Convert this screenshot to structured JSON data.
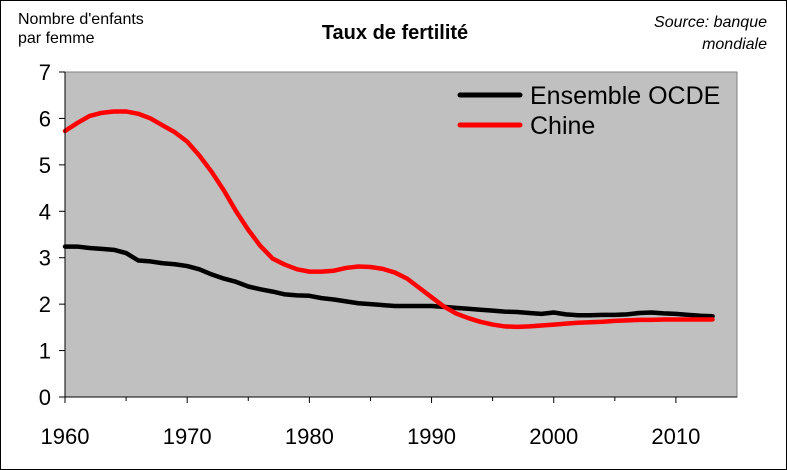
{
  "chart_data": {
    "type": "line",
    "title": "Taux de fertilité",
    "ylabel": "Nombre d'enfants\npar femme",
    "source": "Source: banque\nmondiale",
    "xlim": [
      1960,
      2015
    ],
    "ylim": [
      0,
      7
    ],
    "x_ticks": [
      1960,
      1970,
      1980,
      1990,
      2000,
      2010
    ],
    "y_ticks": [
      0,
      1,
      2,
      3,
      4,
      5,
      6,
      7
    ],
    "grid": false,
    "legend_position": "top-right",
    "plot_background": "#c0c0c0",
    "series": [
      {
        "name": "Ensemble OCDE",
        "color": "#000000",
        "x": [
          1960,
          1961,
          1962,
          1963,
          1964,
          1965,
          1966,
          1967,
          1968,
          1969,
          1970,
          1971,
          1972,
          1973,
          1974,
          1975,
          1976,
          1977,
          1978,
          1979,
          1980,
          1981,
          1982,
          1983,
          1984,
          1985,
          1986,
          1987,
          1988,
          1989,
          1990,
          1991,
          1992,
          1993,
          1994,
          1995,
          1996,
          1997,
          1998,
          1999,
          2000,
          2001,
          2002,
          2003,
          2004,
          2005,
          2006,
          2007,
          2008,
          2009,
          2010,
          2011,
          2012,
          2013
        ],
        "y": [
          3.24,
          3.24,
          3.21,
          3.19,
          3.17,
          3.1,
          2.94,
          2.92,
          2.88,
          2.86,
          2.82,
          2.75,
          2.64,
          2.55,
          2.48,
          2.38,
          2.32,
          2.27,
          2.21,
          2.19,
          2.18,
          2.13,
          2.1,
          2.06,
          2.02,
          2.0,
          1.98,
          1.96,
          1.96,
          1.96,
          1.96,
          1.94,
          1.92,
          1.9,
          1.88,
          1.86,
          1.84,
          1.83,
          1.81,
          1.79,
          1.82,
          1.78,
          1.76,
          1.76,
          1.77,
          1.77,
          1.78,
          1.81,
          1.82,
          1.8,
          1.79,
          1.77,
          1.75,
          1.74
        ]
      },
      {
        "name": "Chine",
        "color": "#ff0000",
        "x": [
          1960,
          1961,
          1962,
          1963,
          1964,
          1965,
          1966,
          1967,
          1968,
          1969,
          1970,
          1971,
          1972,
          1973,
          1974,
          1975,
          1976,
          1977,
          1978,
          1979,
          1980,
          1981,
          1982,
          1983,
          1984,
          1985,
          1986,
          1987,
          1988,
          1989,
          1990,
          1991,
          1992,
          1993,
          1994,
          1995,
          1996,
          1997,
          1998,
          1999,
          2000,
          2001,
          2002,
          2003,
          2004,
          2005,
          2006,
          2007,
          2008,
          2009,
          2010,
          2011,
          2012,
          2013
        ],
        "y": [
          5.73,
          5.9,
          6.05,
          6.12,
          6.15,
          6.15,
          6.1,
          6.0,
          5.85,
          5.7,
          5.5,
          5.2,
          4.85,
          4.45,
          4.0,
          3.6,
          3.25,
          2.98,
          2.85,
          2.75,
          2.7,
          2.7,
          2.72,
          2.78,
          2.81,
          2.8,
          2.76,
          2.68,
          2.55,
          2.35,
          2.15,
          1.95,
          1.8,
          1.7,
          1.62,
          1.56,
          1.52,
          1.51,
          1.52,
          1.54,
          1.56,
          1.58,
          1.6,
          1.61,
          1.62,
          1.64,
          1.65,
          1.66,
          1.66,
          1.67,
          1.67,
          1.67,
          1.67,
          1.67
        ]
      }
    ]
  }
}
